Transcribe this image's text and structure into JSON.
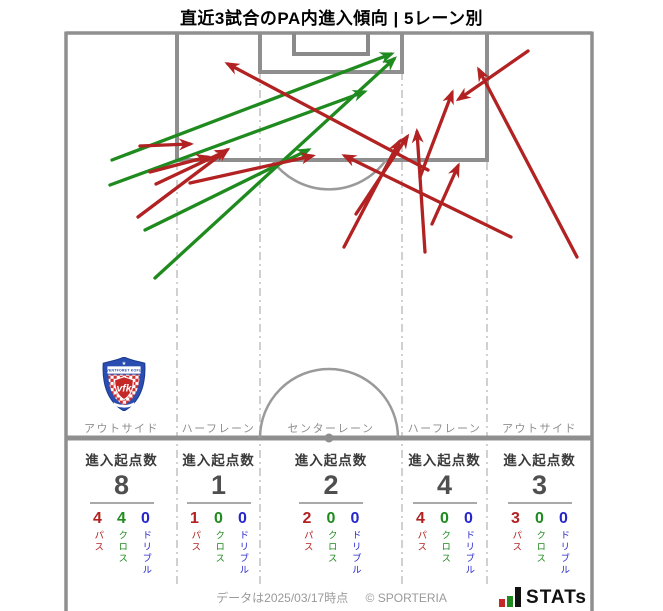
{
  "title": "直近3試合のPA内進入傾向 | 5レーン別",
  "labels": {
    "entry_count": "進入起点数",
    "pass": "パス",
    "cross": "クロス",
    "dribble": "ドリブル"
  },
  "footer": {
    "data_note": "データは2025/03/17時点",
    "copyright": "© SPORTERIA",
    "brand": "STATs"
  },
  "club_logo": {
    "top_text": "VENTFORET KOFU",
    "monogram": "vfk"
  },
  "colors": {
    "pass": "#b22222",
    "cross": "#1f8b1f",
    "dribble": "#2626cc",
    "pitch_line": "#8f8f8f",
    "lane_line": "#bdbdbd",
    "text_muted": "#8f8f8f"
  },
  "chart_data": {
    "type": "pitch-arrow-map",
    "title": "直近3試合のPA内進入傾向 | 5レーン別",
    "legend": {
      "pass": "パス",
      "cross": "クロス",
      "dribble": "ドリブル"
    },
    "lanes": [
      {
        "label": "アウトサイド",
        "entry_count_label": "進入起点数",
        "entries": 8,
        "pass": 4,
        "cross": 4,
        "dribble": 0
      },
      {
        "label": "ハーフレーン",
        "entry_count_label": "進入起点数",
        "entries": 1,
        "pass": 1,
        "cross": 0,
        "dribble": 0
      },
      {
        "label": "センターレーン",
        "entry_count_label": "進入起点数",
        "entries": 2,
        "pass": 2,
        "cross": 0,
        "dribble": 0
      },
      {
        "label": "ハーフレーン",
        "entry_count_label": "進入起点数",
        "entries": 4,
        "pass": 4,
        "cross": 0,
        "dribble": 0
      },
      {
        "label": "アウトサイド",
        "entry_count_label": "進入起点数",
        "entries": 3,
        "pass": 3,
        "cross": 0,
        "dribble": 0
      }
    ],
    "arrows": [
      {
        "kind": "cross",
        "from": [
          112,
          160
        ],
        "to": [
          391,
          54
        ]
      },
      {
        "kind": "cross",
        "from": [
          110,
          185
        ],
        "to": [
          364,
          92
        ]
      },
      {
        "kind": "cross",
        "from": [
          145,
          230
        ],
        "to": [
          308,
          150
        ]
      },
      {
        "kind": "cross",
        "from": [
          155,
          278
        ],
        "to": [
          394,
          59
        ]
      },
      {
        "kind": "pass",
        "from": [
          140,
          146
        ],
        "to": [
          190,
          144
        ]
      },
      {
        "kind": "pass",
        "from": [
          150,
          172
        ],
        "to": [
          207,
          157
        ]
      },
      {
        "kind": "pass",
        "from": [
          156,
          184
        ],
        "to": [
          226,
          151
        ]
      },
      {
        "kind": "pass",
        "from": [
          138,
          217
        ],
        "to": [
          227,
          150
        ]
      },
      {
        "kind": "pass",
        "from": [
          190,
          183
        ],
        "to": [
          312,
          156
        ]
      },
      {
        "kind": "pass",
        "from": [
          356,
          214
        ],
        "to": [
          407,
          137
        ]
      },
      {
        "kind": "pass",
        "from": [
          344,
          247
        ],
        "to": [
          399,
          142
        ]
      },
      {
        "kind": "pass",
        "from": [
          428,
          170
        ],
        "to": [
          228,
          64
        ]
      },
      {
        "kind": "pass",
        "from": [
          420,
          177
        ],
        "to": [
          452,
          93
        ]
      },
      {
        "kind": "pass",
        "from": [
          425,
          252
        ],
        "to": [
          417,
          132
        ]
      },
      {
        "kind": "pass",
        "from": [
          432,
          224
        ],
        "to": [
          458,
          166
        ]
      },
      {
        "kind": "pass",
        "from": [
          511,
          237
        ],
        "to": [
          345,
          156
        ]
      },
      {
        "kind": "pass",
        "from": [
          577,
          257
        ],
        "to": [
          479,
          70
        ]
      },
      {
        "kind": "pass",
        "from": [
          528,
          51
        ],
        "to": [
          459,
          99
        ]
      }
    ]
  }
}
